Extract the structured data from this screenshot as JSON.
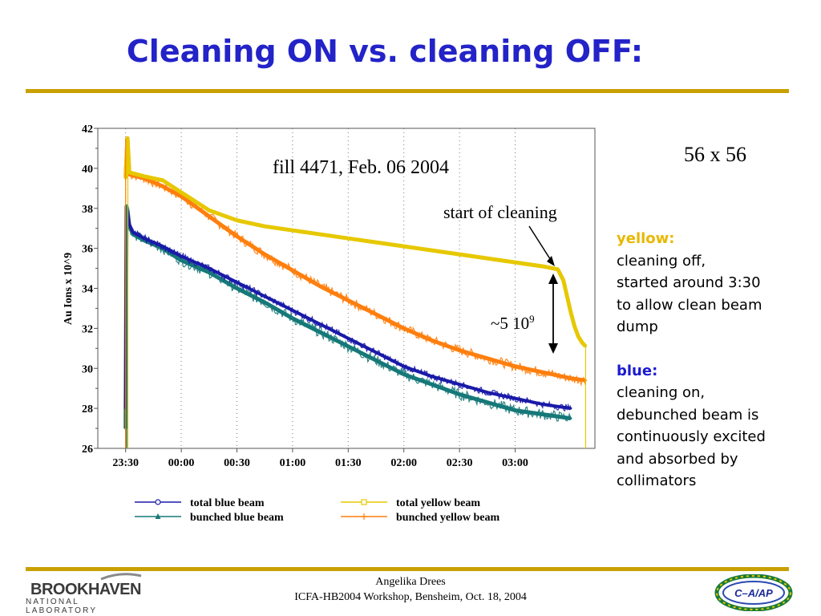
{
  "slide": {
    "title": "Cleaning ON vs. cleaning OFF:",
    "fill_label": "fill 4471, Feb. 06 2004",
    "cleaning_label": "start of cleaning",
    "delta_label_base": "~5 10",
    "delta_label_exp": "9",
    "size_label": "56 x 56",
    "notes": {
      "yellow_head": "yellow:",
      "yellow_lines": [
        "cleaning off,",
        "started around 3:30",
        "to allow clean beam",
        "dump"
      ],
      "blue_head": "blue:",
      "blue_lines": [
        "cleaning on,",
        "debunched beam is",
        "continuously excited",
        "and absorbed by",
        "collimators"
      ]
    },
    "footer": {
      "author": "Angelika Drees",
      "event": "ICFA-HB2004 Workshop, Bensheim, Oct. 18, 2004",
      "left_logo_main": "BROOKHAVEN",
      "left_logo_sub": "NATIONAL LABORATORY",
      "right_logo": "C–A/AP"
    },
    "colors": {
      "title": "#2323c8",
      "rule": "#c9a000",
      "yellow_head": "#e8b800",
      "blue_head": "#1a1ad0"
    }
  },
  "chart_data": {
    "type": "line",
    "ylabel": "Au Ions x 10^9",
    "xlabel": "",
    "ylim": [
      26,
      42
    ],
    "y_ticks": [
      26,
      28,
      30,
      32,
      34,
      36,
      38,
      40,
      42
    ],
    "x_tick_labels": [
      "23:30",
      "00:00",
      "00:30",
      "01:00",
      "01:30",
      "02:00",
      "02:30",
      "03:00"
    ],
    "x_tick_minutes": [
      0,
      30,
      60,
      90,
      120,
      150,
      180,
      210
    ],
    "xlim_minutes": [
      -15,
      253
    ],
    "grid": "vertical-dotted",
    "legend_placement": "bottom",
    "series": [
      {
        "name": "total blue beam",
        "color": "#1a1aa8",
        "marker": "circle",
        "points": [
          [
            0,
            28.0
          ],
          [
            0.5,
            38.0
          ],
          [
            1,
            37.8
          ],
          [
            2,
            37.2
          ],
          [
            4,
            36.8
          ],
          [
            10,
            36.5
          ],
          [
            20,
            36.1
          ],
          [
            30,
            35.6
          ],
          [
            45,
            35.0
          ],
          [
            60,
            34.3
          ],
          [
            75,
            33.6
          ],
          [
            90,
            32.9
          ],
          [
            105,
            32.2
          ],
          [
            120,
            31.5
          ],
          [
            135,
            30.8
          ],
          [
            150,
            30.1
          ],
          [
            165,
            29.6
          ],
          [
            180,
            29.2
          ],
          [
            195,
            28.8
          ],
          [
            210,
            28.5
          ],
          [
            225,
            28.2
          ],
          [
            240,
            28.0
          ]
        ]
      },
      {
        "name": "bunched blue beam",
        "color": "#167878",
        "marker": "triangle",
        "points": [
          [
            0,
            27.0
          ],
          [
            0.5,
            38.1
          ],
          [
            1,
            37.9
          ],
          [
            2,
            37.1
          ],
          [
            4,
            36.7
          ],
          [
            10,
            36.4
          ],
          [
            20,
            36.0
          ],
          [
            30,
            35.4
          ],
          [
            45,
            34.8
          ],
          [
            60,
            34.0
          ],
          [
            75,
            33.3
          ],
          [
            90,
            32.5
          ],
          [
            105,
            31.8
          ],
          [
            120,
            31.1
          ],
          [
            135,
            30.4
          ],
          [
            150,
            29.7
          ],
          [
            165,
            29.2
          ],
          [
            180,
            28.7
          ],
          [
            195,
            28.3
          ],
          [
            210,
            27.9
          ],
          [
            225,
            27.7
          ],
          [
            240,
            27.5
          ]
        ]
      },
      {
        "name": "total yellow beam",
        "color": "#e6c800",
        "marker": "square",
        "points": [
          [
            0,
            39.5
          ],
          [
            1,
            41.5
          ],
          [
            2,
            39.8
          ],
          [
            10,
            39.6
          ],
          [
            20,
            39.4
          ],
          [
            30,
            38.8
          ],
          [
            45,
            37.9
          ],
          [
            60,
            37.4
          ],
          [
            75,
            37.1
          ],
          [
            90,
            36.9
          ],
          [
            105,
            36.7
          ],
          [
            120,
            36.5
          ],
          [
            135,
            36.3
          ],
          [
            150,
            36.1
          ],
          [
            165,
            35.9
          ],
          [
            180,
            35.7
          ],
          [
            195,
            35.5
          ],
          [
            210,
            35.3
          ],
          [
            225,
            35.1
          ],
          [
            233,
            34.95
          ],
          [
            236,
            34.4
          ],
          [
            238,
            33.6
          ],
          [
            240,
            32.8
          ],
          [
            242,
            32.1
          ],
          [
            244,
            31.6
          ],
          [
            246,
            31.3
          ],
          [
            248,
            31.1
          ]
        ]
      },
      {
        "name": "bunched yellow beam",
        "color": "#ff7f0e",
        "marker": "plus",
        "points": [
          [
            0,
            39.6
          ],
          [
            1,
            41.5
          ],
          [
            2,
            39.7
          ],
          [
            10,
            39.5
          ],
          [
            20,
            39.1
          ],
          [
            30,
            38.6
          ],
          [
            45,
            37.6
          ],
          [
            60,
            36.6
          ],
          [
            75,
            35.7
          ],
          [
            90,
            34.9
          ],
          [
            105,
            34.1
          ],
          [
            120,
            33.4
          ],
          [
            135,
            32.7
          ],
          [
            150,
            32.0
          ],
          [
            165,
            31.4
          ],
          [
            180,
            30.9
          ],
          [
            195,
            30.5
          ],
          [
            210,
            30.1
          ],
          [
            225,
            29.8
          ],
          [
            240,
            29.5
          ],
          [
            248,
            29.4
          ]
        ]
      }
    ]
  }
}
